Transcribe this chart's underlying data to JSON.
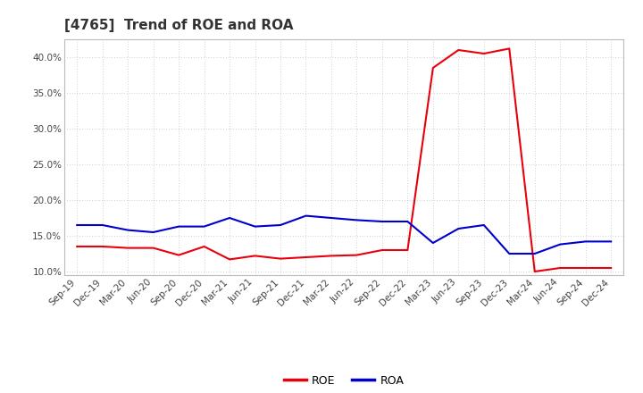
{
  "title": "[4765]  Trend of ROE and ROA",
  "x_labels": [
    "Sep-19",
    "Dec-19",
    "Mar-20",
    "Jun-20",
    "Sep-20",
    "Dec-20",
    "Mar-21",
    "Jun-21",
    "Sep-21",
    "Dec-21",
    "Mar-22",
    "Jun-22",
    "Sep-22",
    "Dec-22",
    "Mar-23",
    "Jun-23",
    "Sep-23",
    "Dec-23",
    "Mar-24",
    "Jun-24",
    "Sep-24",
    "Dec-24"
  ],
  "ROE": [
    13.5,
    13.5,
    13.3,
    13.3,
    12.3,
    13.5,
    11.7,
    12.2,
    11.8,
    12.0,
    12.2,
    12.3,
    13.0,
    13.0,
    38.5,
    41.0,
    40.5,
    41.2,
    10.0,
    10.5,
    10.5,
    10.5
  ],
  "ROA": [
    16.5,
    16.5,
    15.8,
    15.5,
    16.3,
    16.3,
    17.5,
    16.3,
    16.5,
    17.8,
    17.5,
    17.2,
    17.0,
    17.0,
    14.0,
    16.0,
    16.5,
    12.5,
    12.5,
    13.8,
    14.2,
    14.2
  ],
  "roe_color": "#e8000d",
  "roa_color": "#0000cc",
  "background_color": "#ffffff",
  "grid_color": "#aaaaaa",
  "ylim": [
    9.5,
    42.5
  ],
  "yticks": [
    10.0,
    15.0,
    20.0,
    25.0,
    30.0,
    35.0,
    40.0
  ],
  "line_width": 1.5,
  "title_fontsize": 11,
  "tick_fontsize": 7.5,
  "legend_fontsize": 9
}
